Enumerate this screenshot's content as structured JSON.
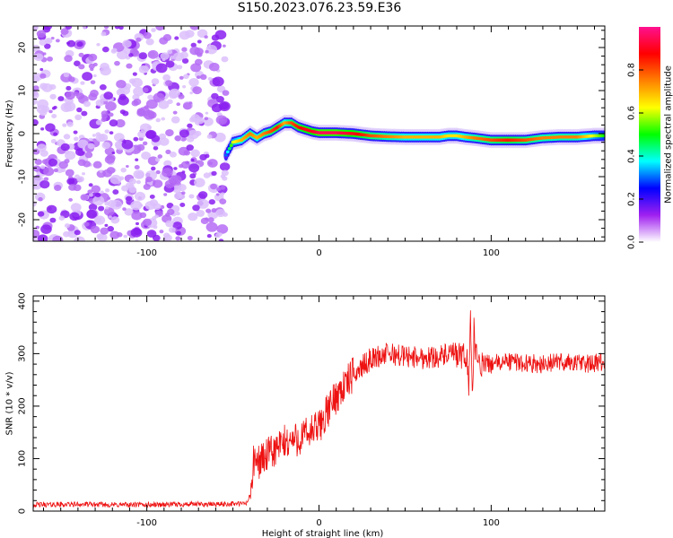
{
  "figure_title": "S150.2023.076.23.59.E36",
  "colors": {
    "snr_line": "#ee1111",
    "axis": "#000000",
    "background": "#ffffff"
  },
  "chart_data": [
    {
      "type": "heatmap",
      "xlabel": "Height of straight line (km)",
      "ylabel": "Frequency (Hz)",
      "xlim": [
        -166,
        166
      ],
      "ylim": [
        -25,
        25
      ],
      "x_ticks": [
        -100,
        0,
        100
      ],
      "y_ticks": [
        -20,
        -10,
        0,
        10,
        20
      ],
      "colorbar": {
        "label": "Normalized spectral amplitude",
        "ticks": [
          "0.0",
          "0.2",
          "0.4",
          "0.6",
          "0.8"
        ],
        "range": [
          0,
          1
        ],
        "colormap": [
          "#ffffff",
          "#a020f0",
          "#0000ff",
          "#00ffff",
          "#00ff00",
          "#ffff00",
          "#ff8000",
          "#ff0000",
          "#ff1090"
        ]
      },
      "noise_region_x": [
        -166,
        -54
      ],
      "ridge": {
        "x": [
          -54,
          -50,
          -45,
          -40,
          -36,
          -32,
          -28,
          -24,
          -20,
          -16,
          -12,
          -8,
          -4,
          0,
          10,
          20,
          30,
          40,
          50,
          60,
          70,
          75,
          80,
          85,
          90,
          100,
          110,
          120,
          130,
          140,
          150,
          160,
          166
        ],
        "y": [
          -5,
          -2,
          -1.5,
          0,
          -1,
          0,
          0.5,
          1.5,
          2.5,
          2.5,
          1.5,
          1,
          0.5,
          0.2,
          0.2,
          0,
          -0.5,
          -0.7,
          -0.8,
          -0.8,
          -0.8,
          -0.5,
          -0.5,
          -0.8,
          -1,
          -1.5,
          -1.5,
          -1.5,
          -1,
          -0.8,
          -0.8,
          -0.5,
          -0.5
        ],
        "amplitude": [
          0.3,
          0.6,
          0.7,
          0.75,
          0.7,
          0.75,
          0.8,
          0.85,
          0.7,
          0.8,
          0.85,
          0.9,
          0.9,
          0.95,
          0.95,
          0.9,
          0.8,
          0.75,
          0.7,
          0.7,
          0.7,
          0.65,
          0.65,
          0.7,
          0.75,
          0.8,
          0.85,
          0.8,
          0.75,
          0.75,
          0.75,
          0.6,
          0.5
        ]
      }
    },
    {
      "type": "line",
      "xlabel": "Height of straight line (km)",
      "ylabel": "SNR (10 * v/v)",
      "xlim": [
        -166,
        166
      ],
      "ylim": [
        0,
        410
      ],
      "x_ticks": [
        -100,
        0,
        100
      ],
      "y_ticks": [
        0,
        100,
        200,
        300,
        400
      ],
      "series": [
        {
          "x": [
            -166,
            -140,
            -120,
            -100,
            -80,
            -60,
            -50,
            -45,
            -42,
            -40,
            -38,
            -30,
            -20,
            -10,
            0,
            10,
            20,
            30,
            40,
            50,
            60,
            70,
            80,
            84,
            86,
            87,
            88,
            89,
            90,
            92,
            100,
            110,
            120,
            130,
            140,
            150,
            160,
            166
          ],
          "y": [
            12,
            13,
            12,
            12,
            13,
            13,
            14,
            14,
            15,
            30,
            90,
            105,
            130,
            140,
            160,
            220,
            260,
            290,
            300,
            295,
            292,
            295,
            300,
            290,
            300,
            230,
            400,
            200,
            340,
            280,
            280,
            285,
            282,
            280,
            285,
            282,
            280,
            285
          ]
        }
      ]
    }
  ]
}
